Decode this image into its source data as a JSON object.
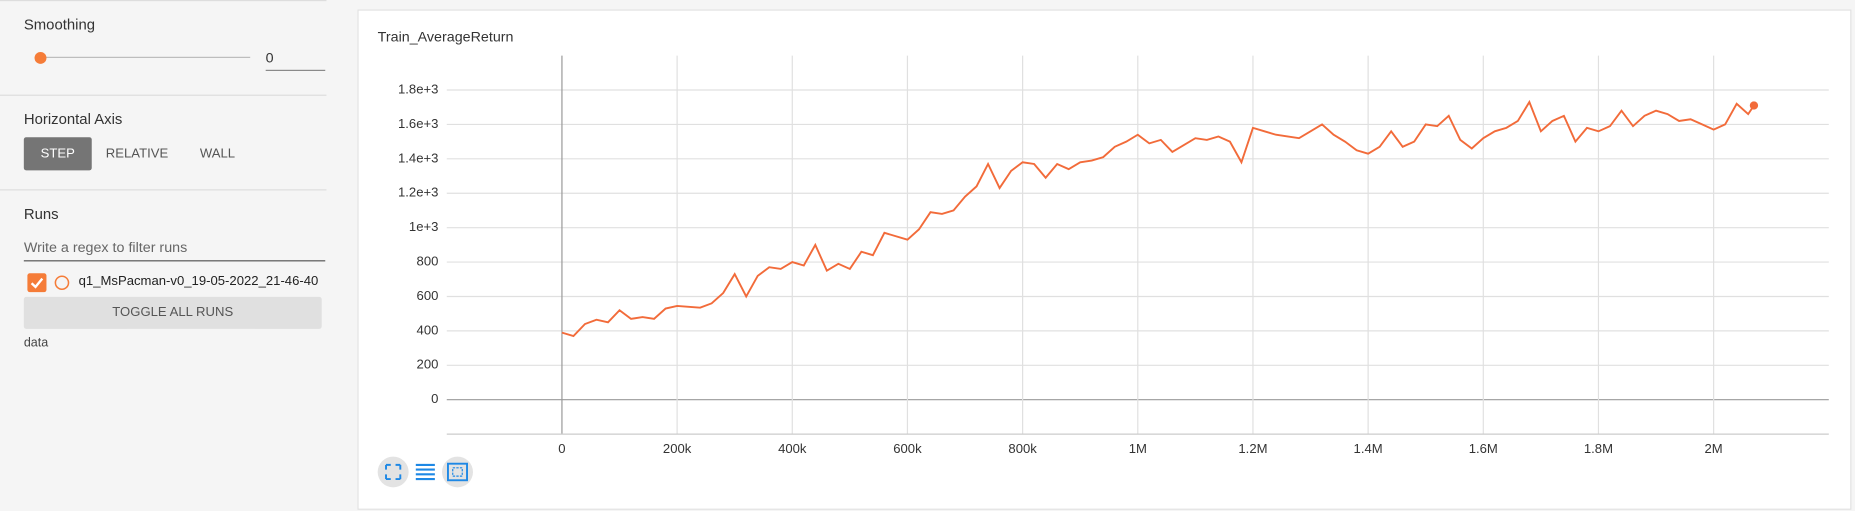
{
  "sidebar": {
    "smoothing": {
      "label": "Smoothing",
      "value": 0
    },
    "horizontal_axis": {
      "label": "Horizontal Axis",
      "options": [
        "STEP",
        "RELATIVE",
        "WALL"
      ]
    },
    "runs": {
      "label": "Runs",
      "filter_placeholder": "Write a regex to filter runs",
      "run_name": "q1_MsPacman-v0_19-05-2022_21-46-40",
      "toggle_button": "TOGGLE ALL RUNS",
      "footer": "data"
    }
  },
  "chart_data": {
    "type": "line",
    "title": "Train_AverageReturn",
    "color": "#f26b3a",
    "grid": true,
    "x": [
      0,
      20000,
      40000,
      60000,
      80000,
      100000,
      120000,
      140000,
      160000,
      180000,
      200000,
      220000,
      240000,
      260000,
      280000,
      300000,
      320000,
      340000,
      360000,
      380000,
      400000,
      420000,
      440000,
      460000,
      480000,
      500000,
      520000,
      540000,
      560000,
      580000,
      600000,
      620000,
      640000,
      660000,
      680000,
      700000,
      720000,
      740000,
      760000,
      780000,
      800000,
      820000,
      840000,
      860000,
      880000,
      900000,
      920000,
      940000,
      960000,
      980000,
      1000000,
      1020000,
      1040000,
      1060000,
      1080000,
      1100000,
      1120000,
      1140000,
      1160000,
      1180000,
      1200000,
      1220000,
      1240000,
      1260000,
      1280000,
      1300000,
      1320000,
      1340000,
      1360000,
      1380000,
      1400000,
      1420000,
      1440000,
      1460000,
      1480000,
      1500000,
      1520000,
      1540000,
      1560000,
      1580000,
      1600000,
      1620000,
      1640000,
      1660000,
      1680000,
      1700000,
      1720000,
      1740000,
      1760000,
      1780000,
      1800000,
      1820000,
      1840000,
      1860000,
      1880000,
      1900000,
      1920000,
      1940000,
      1960000,
      1980000,
      2000000,
      2020000,
      2040000,
      2060000,
      2070000
    ],
    "values": [
      390,
      370,
      440,
      465,
      450,
      520,
      470,
      480,
      470,
      530,
      545,
      540,
      535,
      560,
      620,
      730,
      600,
      720,
      770,
      760,
      800,
      780,
      900,
      750,
      790,
      760,
      860,
      840,
      970,
      950,
      930,
      990,
      1090,
      1080,
      1100,
      1180,
      1240,
      1370,
      1230,
      1330,
      1380,
      1370,
      1290,
      1370,
      1340,
      1380,
      1390,
      1410,
      1470,
      1500,
      1540,
      1490,
      1510,
      1440,
      1480,
      1520,
      1510,
      1530,
      1500,
      1380,
      1580,
      1560,
      1540,
      1530,
      1520,
      1560,
      1600,
      1540,
      1500,
      1450,
      1430,
      1470,
      1560,
      1470,
      1500,
      1600,
      1590,
      1650,
      1510,
      1460,
      1520,
      1560,
      1580,
      1620,
      1730,
      1560,
      1620,
      1650,
      1500,
      1580,
      1560,
      1590,
      1680,
      1590,
      1650,
      1680,
      1660,
      1620,
      1630,
      1600,
      1570,
      1600,
      1720,
      1660,
      1710
    ],
    "xlim": [
      -200000,
      2200000
    ],
    "xticks": [
      0,
      {
        "value": 200000,
        "label": "200k"
      },
      {
        "value": 400000,
        "label": "400k"
      },
      {
        "value": 600000,
        "label": "600k"
      },
      {
        "value": 800000,
        "label": "800k"
      },
      {
        "value": 1000000,
        "label": "1M"
      },
      {
        "value": 1200000,
        "label": "1.2M"
      },
      {
        "value": 1400000,
        "label": "1.4M"
      },
      {
        "value": 1600000,
        "label": "1.6M"
      },
      {
        "value": 1800000,
        "label": "1.8M"
      },
      {
        "value": 2000000,
        "label": "2M"
      }
    ],
    "ylim": [
      -200,
      2000
    ],
    "yticks": [
      0,
      200,
      400,
      600,
      800,
      {
        "value": 1000,
        "label": "1e+3"
      },
      {
        "value": 1200,
        "label": "1.2e+3"
      },
      {
        "value": 1400,
        "label": "1.4e+3"
      },
      {
        "value": 1600,
        "label": "1.6e+3"
      },
      {
        "value": 1800,
        "label": "1.8e+3"
      }
    ]
  }
}
